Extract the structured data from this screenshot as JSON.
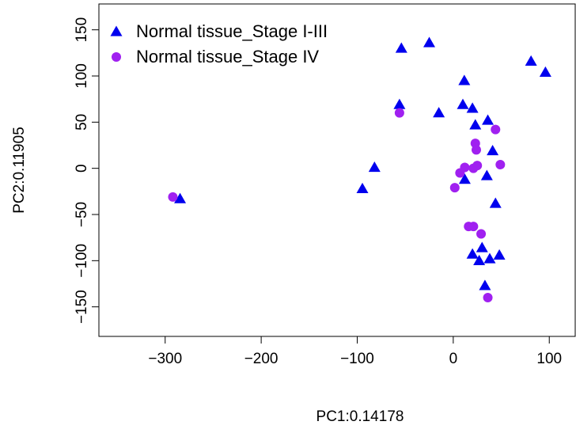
{
  "chart_data": {
    "type": "scatter",
    "x_label": "PC1:0.14178",
    "y_label": "PC2:0.11905",
    "xlim": [
      -369,
      127
    ],
    "ylim": [
      -182,
      178
    ],
    "xticks": [
      {
        "value": -300,
        "label": "−300"
      },
      {
        "value": -200,
        "label": "−200"
      },
      {
        "value": -100,
        "label": "−100"
      },
      0,
      100
    ],
    "yticks": [
      {
        "value": -150,
        "label": "−150"
      },
      {
        "value": -100,
        "label": "−100"
      },
      {
        "value": -50,
        "label": "−50"
      },
      0,
      50,
      100,
      150
    ],
    "legend": "top-left",
    "series": [
      {
        "name": "Normal tissue_Stage I-III",
        "color": "#0000ee",
        "marker": "triangle",
        "x": [
          -284.5,
          -94.6,
          -82,
          -56,
          -54,
          -25,
          -15,
          11.5,
          10,
          20,
          23,
          36,
          41,
          35,
          12,
          44,
          81,
          96,
          20,
          30,
          27,
          38,
          48,
          33
        ],
        "values": [
          -33,
          -22,
          1,
          69,
          130,
          136,
          60,
          95,
          69,
          65,
          47,
          52,
          19,
          -8,
          -12,
          -38,
          116,
          104,
          -93,
          -86,
          -100,
          -98,
          -94,
          -127
        ]
      },
      {
        "name": "Normal tissue_Stage IV",
        "color": "#a020f0",
        "marker": "circle",
        "x": [
          -292,
          -56,
          44,
          23,
          24,
          25,
          21,
          12,
          7,
          1.6,
          49,
          16,
          21,
          29,
          36
        ],
        "values": [
          -31,
          60,
          42,
          27,
          20,
          3,
          0,
          1,
          -5,
          -21,
          4,
          -63,
          -63,
          -71,
          -140
        ]
      }
    ]
  }
}
